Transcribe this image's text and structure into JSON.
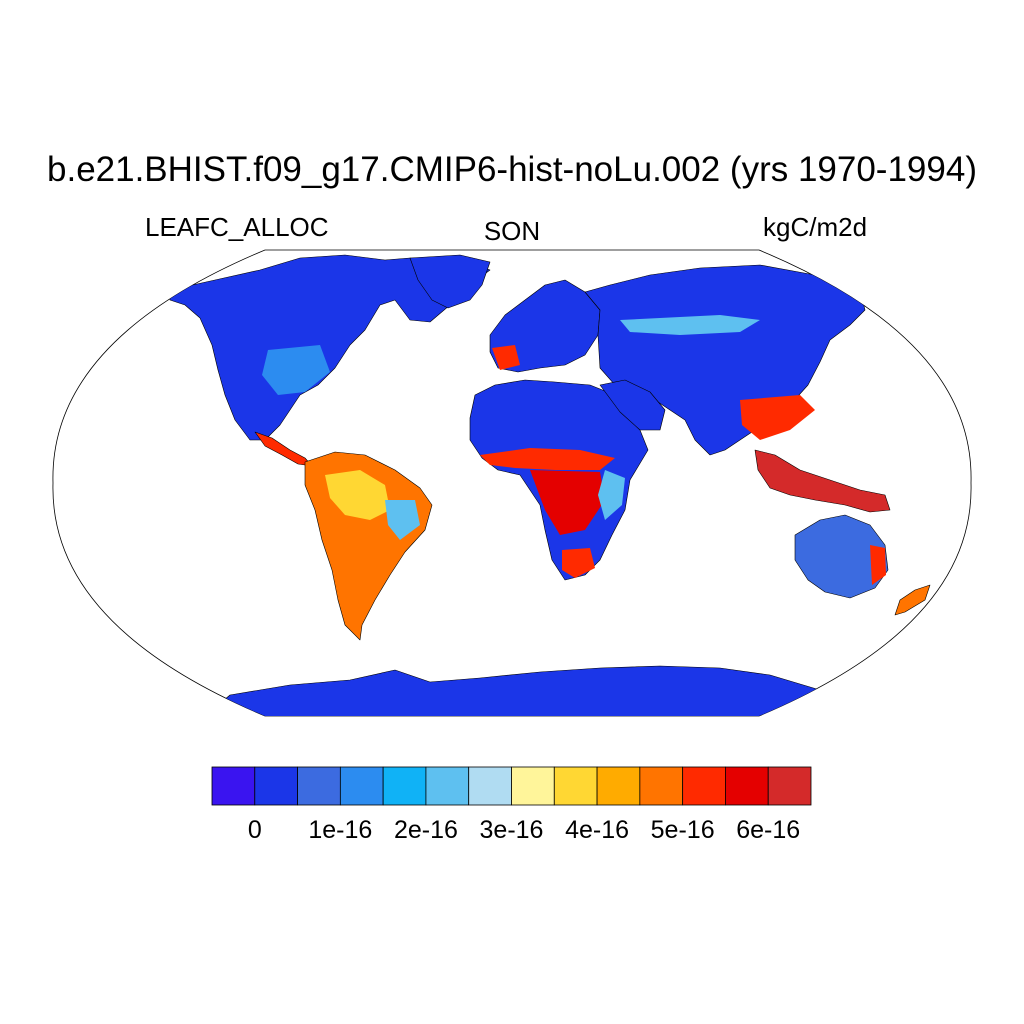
{
  "title": "b.e21.BHIST.f09_g17.CMIP6-hist-noLu.002 (yrs 1970-1994)",
  "subtitle_left": "LEAFC_ALLOC",
  "subtitle_center": "SON",
  "subtitle_right": "kgC/m2d",
  "map": {
    "projection": "Robinson",
    "extent": "global",
    "coastlines": true,
    "ocean_color": "#ffffff"
  },
  "colorbar": {
    "orientation": "horizontal",
    "colors": [
      "#3a14f0",
      "#1b36e8",
      "#3c6be0",
      "#2c8cf0",
      "#10b2f6",
      "#5ec0f0",
      "#b0dcf2",
      "#fff59a",
      "#ffd733",
      "#ffab00",
      "#ff7400",
      "#ff2a00",
      "#e40000",
      "#d42a2a"
    ],
    "tick_labels": [
      "0",
      "1e-16",
      "2e-16",
      "3e-16",
      "4e-16",
      "5e-16",
      "6e-16"
    ],
    "tick_boundaries": [
      1,
      3,
      5,
      7,
      9,
      11,
      13
    ]
  }
}
